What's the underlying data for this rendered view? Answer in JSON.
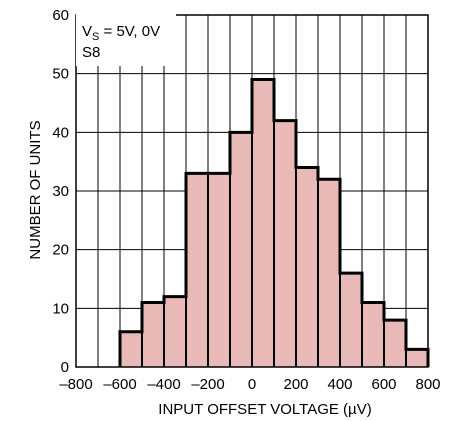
{
  "chart_data": {
    "type": "bar",
    "xlabel": "INPUT OFFSET VOLTAGE (µV)",
    "ylabel": "NUMBER OF UNITS",
    "xlim": [
      -800,
      800
    ],
    "ylim": [
      0,
      60
    ],
    "x_ticks": [
      "–800",
      "–600",
      "–400",
      "–200",
      "0",
      "200",
      "400",
      "600",
      "800"
    ],
    "y_ticks": [
      "0",
      "10",
      "20",
      "30",
      "40",
      "50",
      "60"
    ],
    "bin_edges": [
      -600,
      -500,
      -400,
      -300,
      -200,
      -100,
      0,
      100,
      200,
      300,
      400,
      500,
      600,
      700,
      800
    ],
    "values": [
      6,
      11,
      12,
      33,
      33,
      40,
      49,
      42,
      34,
      32,
      16,
      11,
      8,
      3
    ],
    "annotation": {
      "line1_prefix": "V",
      "line1_subscript": "S",
      "line1_suffix": " = 5V, 0V",
      "line2": "S8"
    },
    "grid": true,
    "bar_fill": "#e8b9b7",
    "bar_edge": "#000000"
  }
}
